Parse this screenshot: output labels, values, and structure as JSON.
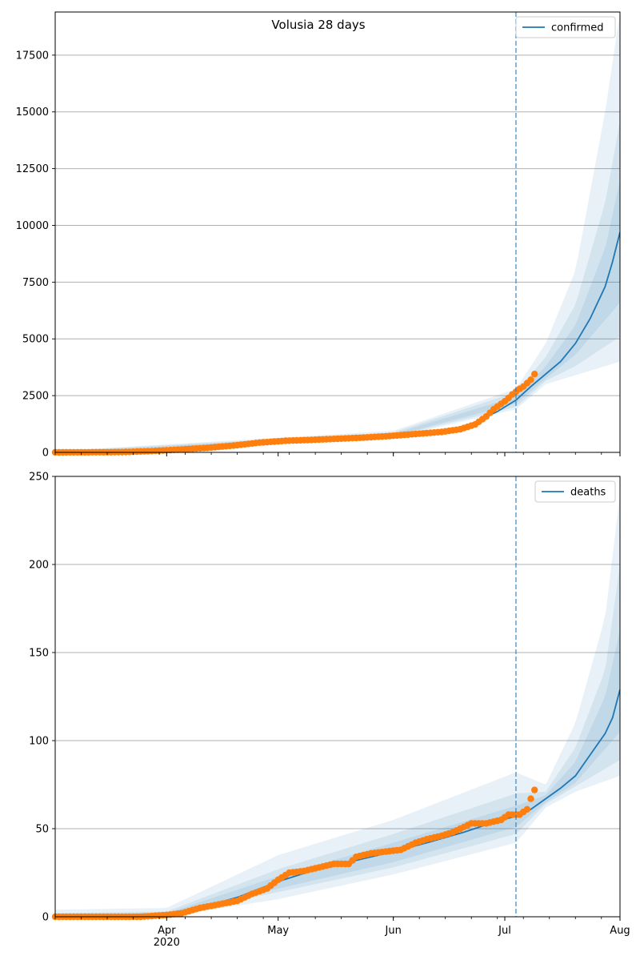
{
  "figure": {
    "title": "Volusia 28 days"
  },
  "colors": {
    "line": "#1f77b4",
    "points": "#ff7f0e",
    "band": "#1f77b4",
    "grid": "#b0b0b0",
    "cutoff": "#1f77b4"
  },
  "x_axis": {
    "start": "2020-03-02",
    "end": "2020-08-01",
    "ticks": [
      {
        "date": "2020-04-01",
        "label": "Apr",
        "sublabel": "2020"
      },
      {
        "date": "2020-05-01",
        "label": "May",
        "sublabel": ""
      },
      {
        "date": "2020-06-01",
        "label": "Jun",
        "sublabel": ""
      },
      {
        "date": "2020-07-01",
        "label": "Jul",
        "sublabel": ""
      },
      {
        "date": "2020-08-01",
        "label": "Aug",
        "sublabel": ""
      }
    ],
    "forecast_start": "2020-07-04"
  },
  "chart_data": [
    {
      "type": "line",
      "name": "confirmed",
      "legend": "confirmed",
      "legend_position": "top-right",
      "grid": true,
      "ylim": [
        0,
        19400
      ],
      "yticks": [
        0,
        2500,
        5000,
        7500,
        10000,
        12500,
        15000,
        17500
      ],
      "median": [
        [
          "2020-03-02",
          15
        ],
        [
          "2020-03-15",
          30
        ],
        [
          "2020-04-01",
          150
        ],
        [
          "2020-04-15",
          260
        ],
        [
          "2020-05-01",
          520
        ],
        [
          "2020-05-15",
          600
        ],
        [
          "2020-06-01",
          760
        ],
        [
          "2020-06-15",
          950
        ],
        [
          "2020-06-22",
          1250
        ],
        [
          "2020-06-29",
          1800
        ],
        [
          "2020-07-04",
          2300
        ],
        [
          "2020-07-08",
          2900
        ],
        [
          "2020-07-12",
          3450
        ],
        [
          "2020-07-16",
          4000
        ],
        [
          "2020-07-20",
          4800
        ],
        [
          "2020-07-24",
          5900
        ],
        [
          "2020-07-28",
          7300
        ],
        [
          "2020-07-30",
          8400
        ],
        [
          "2020-08-01",
          9700
        ]
      ],
      "bands": [
        {
          "label": "outer",
          "lower": [
            [
              "2020-03-02",
              0
            ],
            [
              "2020-06-01",
              650
            ],
            [
              "2020-07-04",
              1900
            ],
            [
              "2020-07-12",
              3000
            ],
            [
              "2020-07-20",
              3400
            ],
            [
              "2020-08-01",
              4000
            ]
          ],
          "upper": [
            [
              "2020-03-02",
              60
            ],
            [
              "2020-06-01",
              950
            ],
            [
              "2020-07-04",
              2800
            ],
            [
              "2020-07-12",
              4800
            ],
            [
              "2020-07-20",
              8000
            ],
            [
              "2020-07-28",
              15000
            ],
            [
              "2020-08-01",
              19400
            ]
          ]
        },
        {
          "label": "middle",
          "lower": [
            [
              "2020-03-02",
              5
            ],
            [
              "2020-06-01",
              700
            ],
            [
              "2020-07-04",
              2000
            ],
            [
              "2020-07-12",
              3150
            ],
            [
              "2020-07-20",
              3800
            ],
            [
              "2020-08-01",
              5100
            ]
          ],
          "upper": [
            [
              "2020-03-02",
              40
            ],
            [
              "2020-06-01",
              880
            ],
            [
              "2020-07-04",
              2650
            ],
            [
              "2020-07-12",
              4200
            ],
            [
              "2020-07-20",
              6500
            ],
            [
              "2020-07-28",
              11000
            ],
            [
              "2020-08-01",
              14600
            ]
          ]
        },
        {
          "label": "inner",
          "lower": [
            [
              "2020-03-02",
              10
            ],
            [
              "2020-06-01",
              720
            ],
            [
              "2020-07-04",
              2150
            ],
            [
              "2020-07-12",
              3250
            ],
            [
              "2020-07-20",
              4300
            ],
            [
              "2020-08-01",
              6600
            ]
          ],
          "upper": [
            [
              "2020-03-02",
              25
            ],
            [
              "2020-06-01",
              820
            ],
            [
              "2020-07-04",
              2450
            ],
            [
              "2020-07-12",
              3800
            ],
            [
              "2020-07-20",
              5600
            ],
            [
              "2020-07-28",
              9000
            ],
            [
              "2020-08-01",
              12000
            ]
          ]
        }
      ],
      "observed": [
        [
          "2020-03-02",
          0
        ],
        [
          "2020-03-20",
          10
        ],
        [
          "2020-03-28",
          60
        ],
        [
          "2020-04-05",
          130
        ],
        [
          "2020-04-12",
          200
        ],
        [
          "2020-04-19",
          300
        ],
        [
          "2020-04-26",
          430
        ],
        [
          "2020-05-03",
          510
        ],
        [
          "2020-05-10",
          550
        ],
        [
          "2020-05-17",
          600
        ],
        [
          "2020-05-24",
          650
        ],
        [
          "2020-05-31",
          720
        ],
        [
          "2020-06-07",
          810
        ],
        [
          "2020-06-14",
          900
        ],
        [
          "2020-06-19",
          1020
        ],
        [
          "2020-06-23",
          1230
        ],
        [
          "2020-06-26",
          1580
        ],
        [
          "2020-06-28",
          1900
        ],
        [
          "2020-07-01",
          2250
        ],
        [
          "2020-07-03",
          2550
        ],
        [
          "2020-07-05",
          2800
        ],
        [
          "2020-07-06",
          2900
        ],
        [
          "2020-07-07",
          3050
        ],
        [
          "2020-07-08",
          3200
        ],
        [
          "2020-07-09",
          3450
        ]
      ]
    },
    {
      "type": "line",
      "name": "deaths",
      "legend": "deaths",
      "legend_position": "top-right",
      "grid": true,
      "ylim": [
        0,
        250
      ],
      "yticks": [
        0,
        50,
        100,
        150,
        200,
        250
      ],
      "median": [
        [
          "2020-03-02",
          0
        ],
        [
          "2020-03-20",
          1
        ],
        [
          "2020-04-01",
          2
        ],
        [
          "2020-04-10",
          5
        ],
        [
          "2020-04-20",
          11
        ],
        [
          "2020-05-01",
          20
        ],
        [
          "2020-05-10",
          26
        ],
        [
          "2020-05-20",
          31
        ],
        [
          "2020-06-01",
          37
        ],
        [
          "2020-06-10",
          42
        ],
        [
          "2020-06-20",
          48
        ],
        [
          "2020-06-30",
          55
        ],
        [
          "2020-07-04",
          57
        ],
        [
          "2020-07-08",
          61
        ],
        [
          "2020-07-12",
          67
        ],
        [
          "2020-07-16",
          73
        ],
        [
          "2020-07-20",
          80
        ],
        [
          "2020-07-24",
          92
        ],
        [
          "2020-07-28",
          104
        ],
        [
          "2020-07-30",
          113
        ],
        [
          "2020-08-01",
          129
        ]
      ],
      "bands": [
        {
          "label": "outer",
          "lower": [
            [
              "2020-03-02",
              0
            ],
            [
              "2020-04-01",
              0
            ],
            [
              "2020-05-01",
              10
            ],
            [
              "2020-06-01",
              24
            ],
            [
              "2020-07-04",
              42
            ],
            [
              "2020-07-12",
              62
            ],
            [
              "2020-07-20",
              71
            ],
            [
              "2020-08-01",
              80
            ]
          ],
          "upper": [
            [
              "2020-03-02",
              4
            ],
            [
              "2020-04-01",
              5
            ],
            [
              "2020-05-01",
              35
            ],
            [
              "2020-06-01",
              55
            ],
            [
              "2020-07-04",
              82
            ],
            [
              "2020-07-12",
              75
            ],
            [
              "2020-07-20",
              110
            ],
            [
              "2020-07-28",
              170
            ],
            [
              "2020-08-01",
              240
            ]
          ]
        },
        {
          "label": "middle",
          "lower": [
            [
              "2020-03-02",
              0
            ],
            [
              "2020-04-01",
              1
            ],
            [
              "2020-05-01",
              14
            ],
            [
              "2020-06-01",
              28
            ],
            [
              "2020-07-04",
              47
            ],
            [
              "2020-07-12",
              64
            ],
            [
              "2020-07-20",
              74
            ],
            [
              "2020-08-01",
              89
            ]
          ],
          "upper": [
            [
              "2020-03-02",
              2
            ],
            [
              "2020-04-01",
              3
            ],
            [
              "2020-05-01",
              27
            ],
            [
              "2020-06-01",
              47
            ],
            [
              "2020-07-04",
              70
            ],
            [
              "2020-07-12",
              71
            ],
            [
              "2020-07-20",
              96
            ],
            [
              "2020-07-28",
              140
            ],
            [
              "2020-08-01",
              200
            ]
          ]
        },
        {
          "label": "inner",
          "lower": [
            [
              "2020-03-02",
              0
            ],
            [
              "2020-04-01",
              1
            ],
            [
              "2020-05-01",
              16
            ],
            [
              "2020-06-01",
              31
            ],
            [
              "2020-07-04",
              51
            ],
            [
              "2020-07-12",
              65
            ],
            [
              "2020-07-20",
              76
            ],
            [
              "2020-08-01",
              105
            ]
          ],
          "upper": [
            [
              "2020-03-02",
              1
            ],
            [
              "2020-04-01",
              2
            ],
            [
              "2020-05-01",
              23
            ],
            [
              "2020-06-01",
              42
            ],
            [
              "2020-07-04",
              63
            ],
            [
              "2020-07-12",
              69
            ],
            [
              "2020-07-20",
              88
            ],
            [
              "2020-07-28",
              125
            ],
            [
              "2020-08-01",
              163
            ]
          ]
        }
      ],
      "observed": [
        [
          "2020-03-02",
          0
        ],
        [
          "2020-03-25",
          0
        ],
        [
          "2020-04-01",
          1
        ],
        [
          "2020-04-05",
          2
        ],
        [
          "2020-04-10",
          5
        ],
        [
          "2020-04-15",
          7
        ],
        [
          "2020-04-20",
          9
        ],
        [
          "2020-04-24",
          13
        ],
        [
          "2020-04-28",
          16
        ],
        [
          "2020-05-01",
          21
        ],
        [
          "2020-05-04",
          25
        ],
        [
          "2020-05-08",
          26
        ],
        [
          "2020-05-12",
          28
        ],
        [
          "2020-05-16",
          30
        ],
        [
          "2020-05-20",
          30
        ],
        [
          "2020-05-22",
          34
        ],
        [
          "2020-05-26",
          36
        ],
        [
          "2020-05-30",
          37
        ],
        [
          "2020-06-03",
          38
        ],
        [
          "2020-06-07",
          42
        ],
        [
          "2020-06-10",
          44
        ],
        [
          "2020-06-14",
          46
        ],
        [
          "2020-06-17",
          48
        ],
        [
          "2020-06-20",
          51
        ],
        [
          "2020-06-22",
          53
        ],
        [
          "2020-06-26",
          53
        ],
        [
          "2020-06-30",
          55
        ],
        [
          "2020-07-02",
          58
        ],
        [
          "2020-07-05",
          58
        ],
        [
          "2020-07-07",
          61
        ],
        [
          "2020-07-08",
          67
        ],
        [
          "2020-07-09",
          72
        ]
      ]
    }
  ]
}
